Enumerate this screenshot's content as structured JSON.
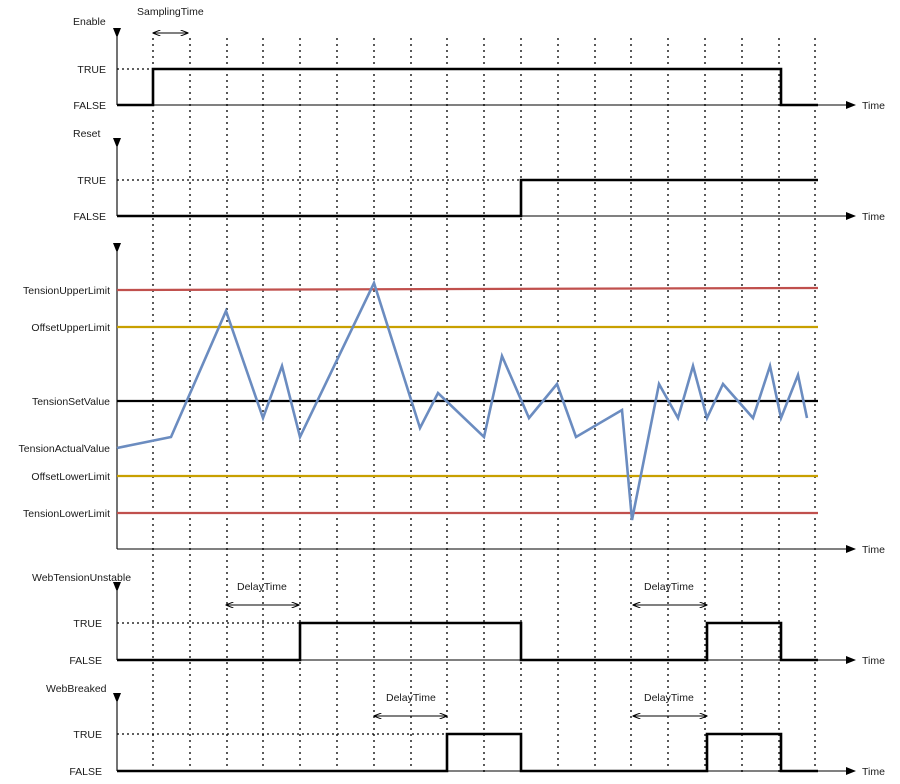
{
  "time_label": "Time",
  "sampling_label": "SamplingTime",
  "panels": {
    "enable": {
      "name": "Enable",
      "true_label": "TRUE",
      "false_label": "FALSE"
    },
    "reset": {
      "name": "Reset",
      "true_label": "TRUE",
      "false_label": "FALSE"
    },
    "unstable": {
      "name": "WebTensionUnstable",
      "true_label": "TRUE",
      "false_label": "FALSE",
      "delay_label": "DelayTime",
      "delay2_label": "DelayTime"
    },
    "breaked": {
      "name": "WebBreaked",
      "true_label": "TRUE",
      "false_label": "FALSE",
      "delay_label": "DelayTime",
      "delay2_label": "DelayTime"
    }
  },
  "tension": {
    "upper_limit": {
      "label": "TensionUpperLimit",
      "color": "#c0504d",
      "value": 3
    },
    "offset_upper": {
      "label": "OffsetUpperLimit",
      "color": "#c8a000",
      "value": 2
    },
    "set_value": {
      "label": "TensionSetValue",
      "color": "#000000",
      "value": 0
    },
    "actual": {
      "label": "TensionActualValue",
      "color": "#6b8cc0"
    },
    "offset_lower": {
      "label": "OffsetLowerLimit",
      "color": "#c8a000",
      "value": -2
    },
    "lower_limit": {
      "label": "TensionLowerLimit",
      "color": "#c0504d",
      "value": -3
    }
  }
}
